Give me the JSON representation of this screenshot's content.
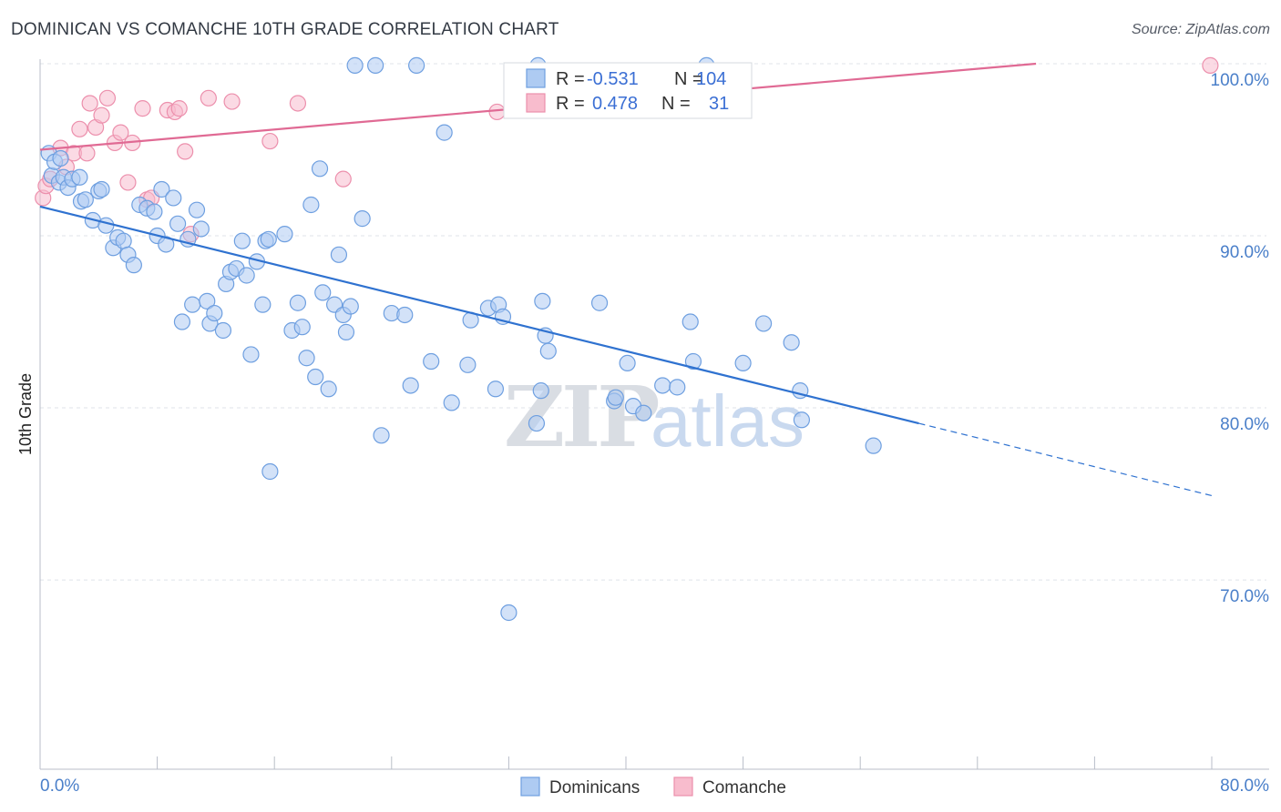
{
  "title": "DOMINICAN VS COMANCHE 10TH GRADE CORRELATION CHART",
  "source": "Source: ZipAtlas.com",
  "watermark": {
    "zip": "ZIP",
    "atlas": "atlas"
  },
  "colors": {
    "blue_fill": "#aecbf2",
    "blue_stroke": "#6e9fe0",
    "blue_line": "#2f72d0",
    "pink_fill": "#f8bccd",
    "pink_stroke": "#ec8fac",
    "pink_line": "#e06a94",
    "axis_text": "#4a7fc9",
    "grid": "#dfe3ea"
  },
  "stats": [
    {
      "r_label": "R =",
      "r": "-0.531",
      "n_label": "N =",
      "n": "104",
      "series": "blue"
    },
    {
      "r_label": "R =",
      "r": "0.478",
      "n_label": "N =",
      "n": "31",
      "series": "pink"
    }
  ],
  "legend": [
    {
      "label": "Dominicans",
      "series": "blue"
    },
    {
      "label": "Comanche",
      "series": "pink"
    }
  ],
  "chart_data": {
    "type": "scatter",
    "title": "DOMINICAN VS COMANCHE 10TH GRADE CORRELATION CHART",
    "xlabel": "",
    "ylabel": "10th Grade",
    "xlim": [
      0,
      0.8
    ],
    "ylim": [
      0.59,
      1.0
    ],
    "x_tick_labels": [
      "0.0%",
      "80.0%"
    ],
    "y_ticks": [
      0.7,
      0.8,
      0.9,
      1.0
    ],
    "y_tick_labels": [
      "70.0%",
      "80.0%",
      "90.0%",
      "100.0%"
    ],
    "grid": true,
    "legend_position": "bottom-center",
    "series": [
      {
        "name": "Dominicans",
        "color": "#aecbf2",
        "trend": {
          "x0": 0.0,
          "y0": 0.917,
          "x1": 0.6,
          "y1": 0.791,
          "dash_to_x": 0.8,
          "dash_to_y": 0.749
        },
        "points": [
          [
            0.006,
            0.948
          ],
          [
            0.008,
            0.935
          ],
          [
            0.01,
            0.943
          ],
          [
            0.013,
            0.931
          ],
          [
            0.014,
            0.945
          ],
          [
            0.016,
            0.934
          ],
          [
            0.019,
            0.928
          ],
          [
            0.022,
            0.933
          ],
          [
            0.027,
            0.934
          ],
          [
            0.028,
            0.92
          ],
          [
            0.031,
            0.921
          ],
          [
            0.036,
            0.909
          ],
          [
            0.04,
            0.926
          ],
          [
            0.042,
            0.927
          ],
          [
            0.045,
            0.906
          ],
          [
            0.05,
            0.893
          ],
          [
            0.053,
            0.899
          ],
          [
            0.057,
            0.897
          ],
          [
            0.06,
            0.889
          ],
          [
            0.064,
            0.883
          ],
          [
            0.068,
            0.918
          ],
          [
            0.073,
            0.916
          ],
          [
            0.078,
            0.914
          ],
          [
            0.08,
            0.9
          ],
          [
            0.083,
            0.927
          ],
          [
            0.086,
            0.895
          ],
          [
            0.091,
            0.922
          ],
          [
            0.094,
            0.907
          ],
          [
            0.097,
            0.85
          ],
          [
            0.101,
            0.898
          ],
          [
            0.104,
            0.86
          ],
          [
            0.107,
            0.915
          ],
          [
            0.11,
            0.904
          ],
          [
            0.114,
            0.862
          ],
          [
            0.116,
            0.849
          ],
          [
            0.119,
            0.855
          ],
          [
            0.125,
            0.845
          ],
          [
            0.127,
            0.872
          ],
          [
            0.13,
            0.879
          ],
          [
            0.134,
            0.881
          ],
          [
            0.138,
            0.897
          ],
          [
            0.141,
            0.877
          ],
          [
            0.144,
            0.831
          ],
          [
            0.148,
            0.885
          ],
          [
            0.152,
            0.86
          ],
          [
            0.154,
            0.897
          ],
          [
            0.156,
            0.898
          ],
          [
            0.157,
            0.763
          ],
          [
            0.167,
            0.901
          ],
          [
            0.172,
            0.845
          ],
          [
            0.176,
            0.861
          ],
          [
            0.179,
            0.847
          ],
          [
            0.182,
            0.829
          ],
          [
            0.185,
            0.918
          ],
          [
            0.188,
            0.818
          ],
          [
            0.191,
            0.939
          ],
          [
            0.193,
            0.867
          ],
          [
            0.197,
            0.811
          ],
          [
            0.201,
            0.86
          ],
          [
            0.204,
            0.889
          ],
          [
            0.207,
            0.854
          ],
          [
            0.209,
            0.844
          ],
          [
            0.212,
            0.859
          ],
          [
            0.215,
            0.999
          ],
          [
            0.22,
            0.91
          ],
          [
            0.229,
            0.999
          ],
          [
            0.233,
            0.784
          ],
          [
            0.24,
            0.855
          ],
          [
            0.249,
            0.854
          ],
          [
            0.253,
            0.813
          ],
          [
            0.257,
            0.999
          ],
          [
            0.267,
            0.827
          ],
          [
            0.276,
            0.96
          ],
          [
            0.281,
            0.803
          ],
          [
            0.292,
            0.825
          ],
          [
            0.294,
            0.851
          ],
          [
            0.306,
            0.858
          ],
          [
            0.311,
            0.811
          ],
          [
            0.313,
            0.86
          ],
          [
            0.316,
            0.853
          ],
          [
            0.32,
            0.681
          ],
          [
            0.339,
            0.791
          ],
          [
            0.342,
            0.81
          ],
          [
            0.343,
            0.862
          ],
          [
            0.345,
            0.842
          ],
          [
            0.347,
            0.833
          ],
          [
            0.392,
            0.804
          ],
          [
            0.393,
            0.806
          ],
          [
            0.401,
            0.826
          ],
          [
            0.405,
            0.801
          ],
          [
            0.412,
            0.797
          ],
          [
            0.425,
            0.813
          ],
          [
            0.435,
            0.812
          ],
          [
            0.446,
            0.827
          ],
          [
            0.444,
            0.85
          ],
          [
            0.48,
            0.826
          ],
          [
            0.494,
            0.849
          ],
          [
            0.513,
            0.838
          ],
          [
            0.519,
            0.81
          ],
          [
            0.52,
            0.793
          ],
          [
            0.569,
            0.778
          ],
          [
            0.382,
            0.861
          ],
          [
            0.34,
            0.999
          ],
          [
            0.455,
            0.999
          ]
        ]
      },
      {
        "name": "Comanche",
        "color": "#f8bccd",
        "trend": {
          "x0": 0.0,
          "y0": 0.95,
          "x1": 0.68,
          "y1": 1.0
        },
        "points": [
          [
            0.002,
            0.922
          ],
          [
            0.004,
            0.929
          ],
          [
            0.007,
            0.933
          ],
          [
            0.014,
            0.951
          ],
          [
            0.018,
            0.94
          ],
          [
            0.023,
            0.948
          ],
          [
            0.027,
            0.962
          ],
          [
            0.032,
            0.948
          ],
          [
            0.034,
            0.977
          ],
          [
            0.038,
            0.963
          ],
          [
            0.042,
            0.97
          ],
          [
            0.046,
            0.98
          ],
          [
            0.051,
            0.954
          ],
          [
            0.055,
            0.96
          ],
          [
            0.06,
            0.931
          ],
          [
            0.063,
            0.954
          ],
          [
            0.07,
            0.974
          ],
          [
            0.073,
            0.921
          ],
          [
            0.076,
            0.922
          ],
          [
            0.087,
            0.973
          ],
          [
            0.092,
            0.972
          ],
          [
            0.095,
            0.974
          ],
          [
            0.099,
            0.949
          ],
          [
            0.103,
            0.901
          ],
          [
            0.115,
            0.98
          ],
          [
            0.131,
            0.978
          ],
          [
            0.157,
            0.955
          ],
          [
            0.176,
            0.977
          ],
          [
            0.207,
            0.933
          ],
          [
            0.312,
            0.972
          ],
          [
            0.799,
            0.999
          ]
        ]
      }
    ]
  }
}
